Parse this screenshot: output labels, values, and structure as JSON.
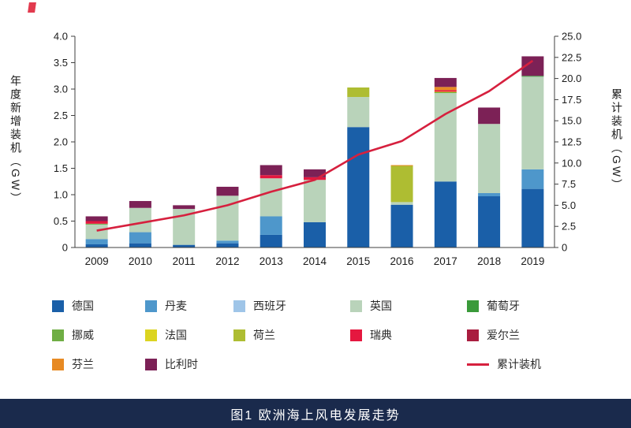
{
  "figure": {
    "caption": "图1 欧洲海上风电发展走势"
  },
  "chart_data": {
    "type": "bar",
    "stacked": true,
    "grid": false,
    "categories": [
      "2009",
      "2010",
      "2011",
      "2012",
      "2013",
      "2014",
      "2015",
      "2016",
      "2017",
      "2018",
      "2019"
    ],
    "ylabel_left": "年度新增装机（GW）",
    "ylabel_right": "累计装机（GW）",
    "ylim_left": [
      0,
      4.0
    ],
    "ylim_right": [
      0,
      25.0
    ],
    "yticks_left": [
      "0",
      "0.5",
      "1.0",
      "1.5",
      "2.0",
      "2.5",
      "3.0",
      "3.5",
      "4.0"
    ],
    "yticks_right": [
      "0",
      "2.5",
      "5.0",
      "7.5",
      "10.0",
      "12.5",
      "15.0",
      "17.5",
      "20.0",
      "22.5",
      "25.0"
    ],
    "series": [
      {
        "name": "德国",
        "color": "#1a5fa8",
        "values": [
          0.06,
          0.08,
          0.05,
          0.08,
          0.24,
          0.48,
          2.28,
          0.81,
          1.25,
          0.97,
          1.11
        ]
      },
      {
        "name": "丹麦",
        "color": "#4e97cb",
        "values": [
          0.1,
          0.21,
          0.0,
          0.05,
          0.35,
          0.0,
          0.0,
          0.0,
          0.0,
          0.06,
          0.37
        ]
      },
      {
        "name": "西班牙",
        "color": "#9fc5e8",
        "values": [
          0.0,
          0.0,
          0.0,
          0.0,
          0.0,
          0.0,
          0.0,
          0.0,
          0.0,
          0.0,
          0.0
        ]
      },
      {
        "name": "英国",
        "color": "#b9d3ba",
        "values": [
          0.28,
          0.46,
          0.68,
          0.85,
          0.72,
          0.8,
          0.57,
          0.05,
          1.68,
          1.31,
          1.76
        ]
      },
      {
        "name": "葡萄牙",
        "color": "#3a9a3a",
        "values": [
          0.0,
          0.0,
          0.0,
          0.0,
          0.0,
          0.0,
          0.0,
          0.0,
          0.01,
          0.0,
          0.01
        ]
      },
      {
        "name": "挪威",
        "color": "#6fae44",
        "values": [
          0.01,
          0.0,
          0.0,
          0.0,
          0.0,
          0.0,
          0.0,
          0.0,
          0.0,
          0.0,
          0.0
        ]
      },
      {
        "name": "法国",
        "color": "#dcd421",
        "values": [
          0.0,
          0.0,
          0.0,
          0.0,
          0.0,
          0.0,
          0.0,
          0.0,
          0.01,
          0.0,
          0.0
        ]
      },
      {
        "name": "荷兰",
        "color": "#aebd32",
        "values": [
          0.0,
          0.0,
          0.0,
          0.0,
          0.0,
          0.0,
          0.18,
          0.69,
          0.0,
          0.0,
          0.0
        ]
      },
      {
        "name": "瑞典",
        "color": "#e5173f",
        "values": [
          0.05,
          0.0,
          0.0,
          0.0,
          0.06,
          0.05,
          0.0,
          0.0,
          0.03,
          0.0,
          0.0
        ]
      },
      {
        "name": "爱尔兰",
        "color": "#a91d3f",
        "values": [
          0.0,
          0.0,
          0.0,
          0.0,
          0.0,
          0.0,
          0.0,
          0.0,
          0.0,
          0.0,
          0.0
        ]
      },
      {
        "name": "芬兰",
        "color": "#e78a23",
        "values": [
          0.0,
          0.0,
          0.0,
          0.0,
          0.0,
          0.0,
          0.0,
          0.01,
          0.06,
          0.0,
          0.0
        ]
      },
      {
        "name": "比利时",
        "color": "#7c2156",
        "values": [
          0.09,
          0.13,
          0.07,
          0.17,
          0.19,
          0.15,
          0.0,
          0.0,
          0.17,
          0.31,
          0.37
        ]
      }
    ],
    "line_series": {
      "name": "累计装机",
      "color": "#d6203e",
      "axis": "right",
      "values": [
        2.0,
        2.9,
        3.8,
        5.0,
        6.6,
        8.0,
        11.0,
        12.6,
        15.8,
        18.5,
        22.1
      ]
    }
  }
}
